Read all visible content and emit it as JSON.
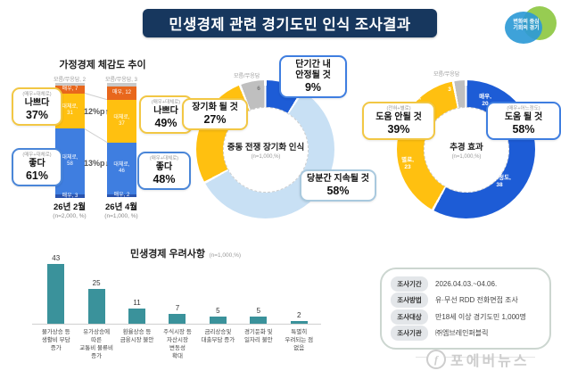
{
  "header": {
    "title": "민생경제 관련 경기도민 인식 조사결과"
  },
  "logo": {
    "line1": "변화의 중심",
    "line2": "기회의 경기"
  },
  "watermark": {
    "icon": "f",
    "text": "포에버뉴스"
  },
  "chart_data": [
    {
      "id": "household_trend",
      "type": "stacked-bar",
      "title": "가정경제 체감도 추이",
      "categories": [
        "26년 2월",
        "26년 4월"
      ],
      "category_bases": [
        "(n=2,000, %)",
        "(n=1,000, %)"
      ],
      "unknown_labels": [
        "모름/무응답, 2",
        "모름/무응답, 3"
      ],
      "series": [
        {
          "name": "모름/무응답",
          "color": "#c9c9c9",
          "values": [
            2,
            3
          ]
        },
        {
          "name": "매우",
          "color": "#e8671c",
          "values": [
            7,
            12
          ]
        },
        {
          "name": "대체로",
          "color": "#ffc010",
          "values": [
            31,
            37
          ]
        },
        {
          "name": "대체로",
          "color": "#3f7ee0",
          "values": [
            58,
            46
          ]
        },
        {
          "name": "매우",
          "color": "#2a53ae",
          "values": [
            3,
            2
          ]
        }
      ],
      "changes": [
        "12%p↑",
        "13%p↓"
      ],
      "callouts": [
        {
          "sub": "(매우+대체로)",
          "label": "나쁘다",
          "pct": "37%",
          "color": "#f2c744"
        },
        {
          "sub": "(매우+대체로)",
          "label": "좋다",
          "pct": "61%",
          "color": "#4a86d8"
        },
        {
          "sub": "(매우+대체로)",
          "label": "나쁘다",
          "pct": "49%",
          "color": "#f2c744"
        },
        {
          "sub": "(매우+대체로)",
          "label": "좋다",
          "pct": "48%",
          "color": "#4a86d8"
        }
      ]
    },
    {
      "id": "war_perception",
      "type": "donut",
      "title": "중동 전쟁 장기화 인식",
      "base": "(n=1,000,%)",
      "unknown_label": "모름/무응답",
      "segments": [
        {
          "name": "단기간 내 안정될 것",
          "value": 9,
          "color": "#1d5cd6"
        },
        {
          "name": "당분간 지속될 것",
          "value": 58,
          "color": "#c8e0f4"
        },
        {
          "name": "장기화 될 것",
          "value": 27,
          "color": "#ffc010"
        },
        {
          "name": "모름/무응답",
          "value": 6,
          "color": "#bfbfbf"
        }
      ],
      "ring_labels": {
        "unknown_value": "6"
      },
      "callouts": [
        {
          "label": "장기화 될 것",
          "pct": "27%",
          "color": "#f2c744"
        },
        {
          "label": "단기간 내\n안정될 것",
          "pct": "9%",
          "color": "#3f7ee0"
        },
        {
          "label": "당분간 지속될 것",
          "pct": "58%",
          "color": "#a9c9de"
        }
      ]
    },
    {
      "id": "budget_effect",
      "type": "donut",
      "title": "추경 효과",
      "base": "(n=1,000,%)",
      "unknown_label": "모름/무응답",
      "segments": [
        {
          "name": "매우",
          "value": 20,
          "color": "#1d5cd6"
        },
        {
          "name": "어느정도",
          "value": 38,
          "color": "#1d5cd6"
        },
        {
          "name": "별로",
          "value": 23,
          "color": "#ffc010"
        },
        {
          "name": "전혀",
          "value": 16,
          "color": "#ffc010"
        },
        {
          "name": "모름/무응답",
          "value": 3,
          "color": "#bfbfbf"
        }
      ],
      "ring_labels": [
        {
          "t1": "매우,",
          "t2": "20"
        },
        {
          "t1": "어느정도,",
          "t2": "38"
        },
        {
          "t1": "별로,",
          "t2": "23"
        },
        {
          "t1": "전혀,",
          "t2": "16"
        },
        {
          "t1": "3",
          "t2": ""
        }
      ],
      "callouts": [
        {
          "sub": "(전혀+별로)",
          "label": "도움 안될 것",
          "pct": "39%",
          "color": "#f2c744"
        },
        {
          "sub": "(매우+어느정도)",
          "label": "도움 될 것",
          "pct": "58%",
          "color": "#3f7ee0"
        }
      ]
    },
    {
      "id": "concerns",
      "type": "bar",
      "title": "민생경제 우려사항",
      "base": "(n=1,000,%)",
      "categories": [
        "물가상승 등\n생활비 부담\n증가",
        "유가상승에\n따른\n교통비 물류비\n증가",
        "환율상승 등\n금융시장 불안",
        "주식시장 등\n자산시장\n변동성\n확대",
        "금리상승및\n대출부담 증가",
        "경기둔화 및\n일자리 불안",
        "특별히\n우려되는 점\n없음"
      ],
      "values": [
        43,
        25,
        11,
        7,
        5,
        5,
        2
      ],
      "bar_color": "#3a929b",
      "ylim": [
        0,
        50
      ]
    }
  ],
  "info_box": {
    "rows": [
      {
        "label": "조사기간",
        "value": "2026.04.03.~04.06."
      },
      {
        "label": "조사방법",
        "value": "유·무선 RDD 전화면접 조사"
      },
      {
        "label": "조사대상",
        "value": "만18세 이상 경기도민 1,000명"
      },
      {
        "label": "조사기관",
        "value": "㈜엠브레인퍼블릭"
      }
    ]
  }
}
